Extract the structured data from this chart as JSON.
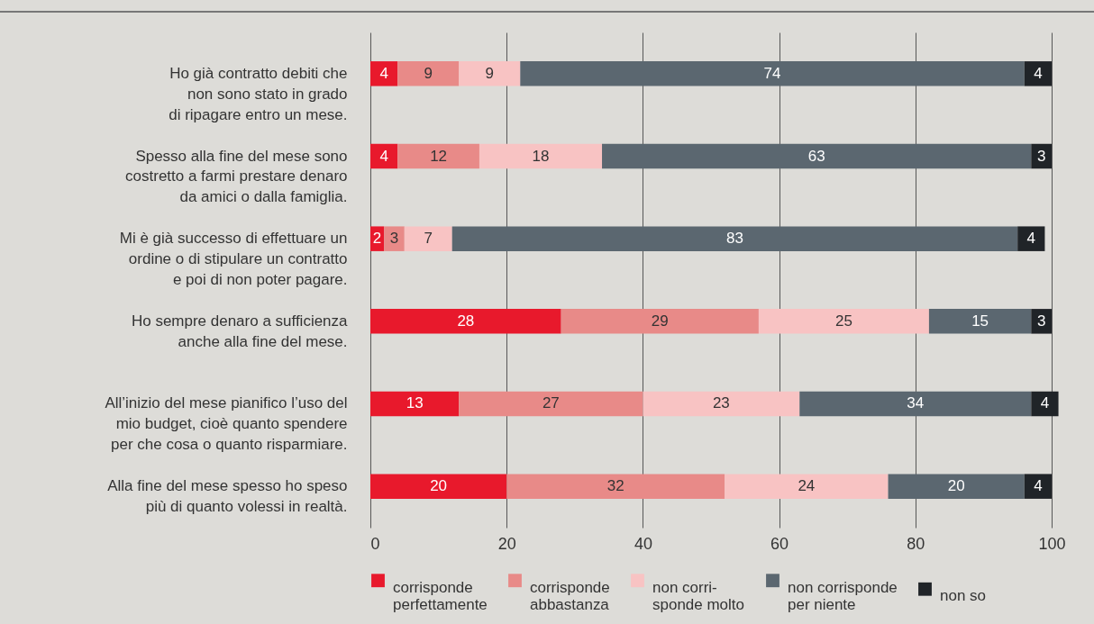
{
  "chart_data": {
    "type": "bar",
    "orientation": "horizontal",
    "stacked": true,
    "data_labels": true,
    "grid": "x",
    "legend": "bottom",
    "categories": [
      "Ho già contratto debiti che\nnon sono stato in grado\ndi ripagare entro un mese.",
      "Spesso alla fine del mese sono\ncostretto a farmi prestare denaro\nda amici o dalla famiglia.",
      "Mi è già successo di effettuare un\nordine o di stipulare un contratto\ne poi di non poter pagare.",
      "Ho sempre denaro a sufficienza\nanche alla fine del mese.",
      "All’inizio del mese pianifico l’uso del\nmio budget, cioè quanto spendere\nper che cosa o quanto risparmiare.",
      "Alla fine del mese spesso ho speso\npiù di quanto volessi in realtà."
    ],
    "xlim": [
      0,
      101
    ],
    "xticks": [
      0,
      20,
      40,
      60,
      80,
      100
    ],
    "series": [
      {
        "name": "corrisponde\nperfettamente",
        "color": "#e8192c",
        "values": [
          4,
          4,
          2,
          28,
          13,
          20
        ]
      },
      {
        "name": "corrisponde\nabbastanza",
        "color": "#e88a88",
        "values": [
          9,
          12,
          3,
          29,
          27,
          32
        ]
      },
      {
        "name": "non corri-\nsponde molto",
        "color": "#f8c3c3",
        "values": [
          9,
          18,
          7,
          25,
          23,
          24
        ]
      },
      {
        "name": "non corrisponde\nper niente",
        "color": "#5b6770",
        "values": [
          74,
          63,
          83,
          15,
          34,
          20
        ]
      },
      {
        "name": "non so",
        "color": "#202428",
        "values": [
          4,
          3,
          4,
          3,
          4,
          4
        ]
      }
    ]
  }
}
